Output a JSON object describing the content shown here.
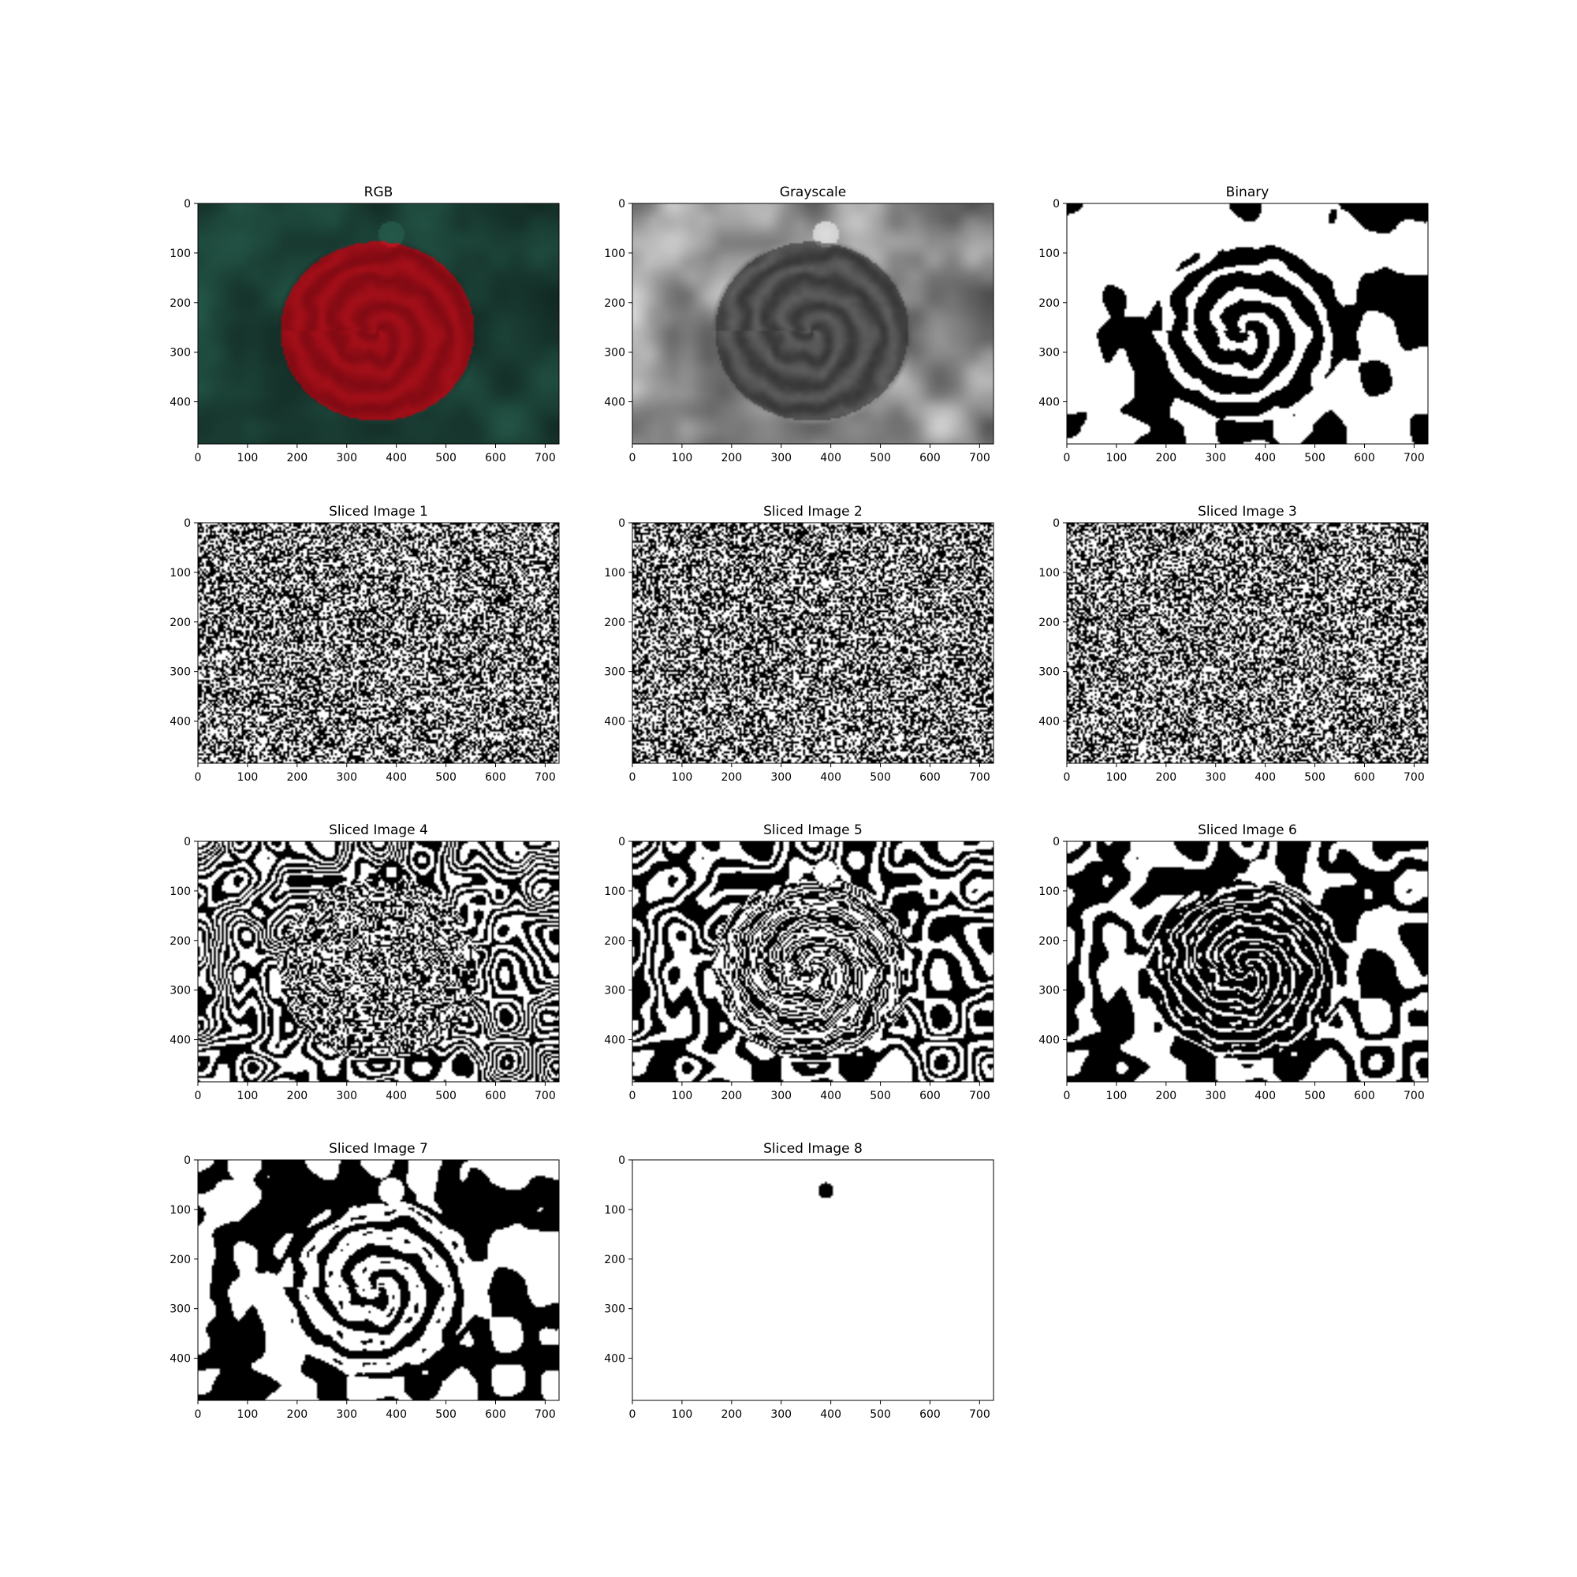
{
  "figure": {
    "background": "#ffffff"
  },
  "chart_data": [
    {
      "type": "image",
      "title": "RGB",
      "content": "rgb-rose",
      "xticks": [
        0,
        100,
        200,
        300,
        400,
        500,
        600,
        700
      ],
      "yticks": [
        0,
        100,
        200,
        300,
        400
      ],
      "xlim": [
        0,
        728
      ],
      "ylim": [
        485,
        0
      ],
      "colors": {
        "background": "#1f4a3e",
        "background_dark": "#0b1a16",
        "petal": "#c0141e",
        "petal_dark": "#6f0710"
      }
    },
    {
      "type": "image",
      "title": "Grayscale",
      "content": "grayscale-rose",
      "xticks": [
        0,
        100,
        200,
        300,
        400,
        500,
        600,
        700
      ],
      "yticks": [
        0,
        100,
        200,
        300,
        400
      ],
      "xlim": [
        0,
        728
      ],
      "ylim": [
        485,
        0
      ],
      "colors": {
        "background": "#8a8a8a",
        "background_dark": "#3a3a3a",
        "petal": "#5a5a5a",
        "petal_dark": "#2c2c2c"
      }
    },
    {
      "type": "image",
      "title": "Binary",
      "content": "binary-rose",
      "xticks": [
        0,
        100,
        200,
        300,
        400,
        500,
        600,
        700
      ],
      "yticks": [
        0,
        100,
        200,
        300,
        400
      ],
      "xlim": [
        0,
        728
      ],
      "ylim": [
        485,
        0
      ],
      "colors": {
        "on": "#ffffff",
        "off": "#000000"
      }
    },
    {
      "type": "image",
      "title": "Sliced Image 1",
      "content": "bit-plane",
      "bit": 1,
      "xticks": [
        0,
        100,
        200,
        300,
        400,
        500,
        600,
        700
      ],
      "yticks": [
        0,
        100,
        200,
        300,
        400
      ],
      "xlim": [
        0,
        728
      ],
      "ylim": [
        485,
        0
      ],
      "colors": {
        "on": "#ffffff",
        "off": "#000000"
      }
    },
    {
      "type": "image",
      "title": "Sliced Image 2",
      "content": "bit-plane",
      "bit": 2,
      "xticks": [
        0,
        100,
        200,
        300,
        400,
        500,
        600,
        700
      ],
      "yticks": [
        0,
        100,
        200,
        300,
        400
      ],
      "xlim": [
        0,
        728
      ],
      "ylim": [
        485,
        0
      ],
      "colors": {
        "on": "#ffffff",
        "off": "#000000"
      }
    },
    {
      "type": "image",
      "title": "Sliced Image 3",
      "content": "bit-plane",
      "bit": 3,
      "xticks": [
        0,
        100,
        200,
        300,
        400,
        500,
        600,
        700
      ],
      "yticks": [
        0,
        100,
        200,
        300,
        400
      ],
      "xlim": [
        0,
        728
      ],
      "ylim": [
        485,
        0
      ],
      "colors": {
        "on": "#ffffff",
        "off": "#000000"
      }
    },
    {
      "type": "image",
      "title": "Sliced Image 4",
      "content": "bit-plane",
      "bit": 4,
      "xticks": [
        0,
        100,
        200,
        300,
        400,
        500,
        600,
        700
      ],
      "yticks": [
        0,
        100,
        200,
        300,
        400
      ],
      "xlim": [
        0,
        728
      ],
      "ylim": [
        485,
        0
      ],
      "colors": {
        "on": "#ffffff",
        "off": "#000000"
      }
    },
    {
      "type": "image",
      "title": "Sliced Image 5",
      "content": "bit-plane",
      "bit": 5,
      "xticks": [
        0,
        100,
        200,
        300,
        400,
        500,
        600,
        700
      ],
      "yticks": [
        0,
        100,
        200,
        300,
        400
      ],
      "xlim": [
        0,
        728
      ],
      "ylim": [
        485,
        0
      ],
      "colors": {
        "on": "#ffffff",
        "off": "#000000"
      }
    },
    {
      "type": "image",
      "title": "Sliced Image 6",
      "content": "bit-plane",
      "bit": 6,
      "xticks": [
        0,
        100,
        200,
        300,
        400,
        500,
        600,
        700
      ],
      "yticks": [
        0,
        100,
        200,
        300,
        400
      ],
      "xlim": [
        0,
        728
      ],
      "ylim": [
        485,
        0
      ],
      "colors": {
        "on": "#ffffff",
        "off": "#000000"
      }
    },
    {
      "type": "image",
      "title": "Sliced Image 7",
      "content": "bit-plane",
      "bit": 7,
      "xticks": [
        0,
        100,
        200,
        300,
        400,
        500,
        600,
        700
      ],
      "yticks": [
        0,
        100,
        200,
        300,
        400
      ],
      "xlim": [
        0,
        728
      ],
      "ylim": [
        485,
        0
      ],
      "colors": {
        "on": "#ffffff",
        "off": "#000000"
      }
    },
    {
      "type": "image",
      "title": "Sliced Image 8",
      "content": "bit-plane",
      "bit": 8,
      "xticks": [
        0,
        100,
        200,
        300,
        400,
        500,
        600,
        700
      ],
      "yticks": [
        0,
        100,
        200,
        300,
        400
      ],
      "xlim": [
        0,
        728
      ],
      "ylim": [
        485,
        0
      ],
      "colors": {
        "on": "#ffffff",
        "off": "#000000"
      }
    }
  ]
}
